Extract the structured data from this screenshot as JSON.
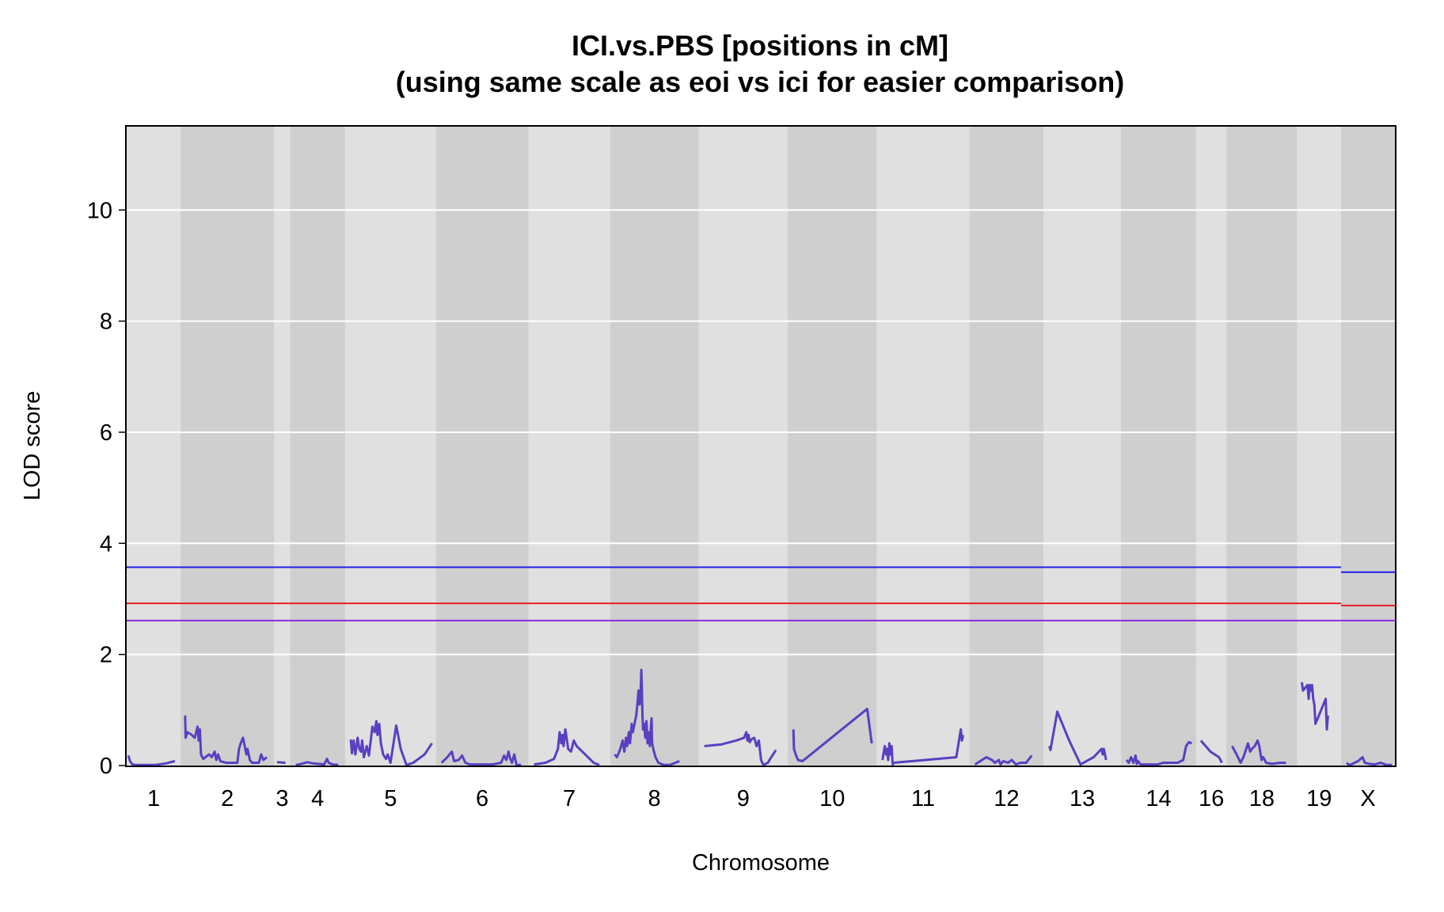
{
  "chart_data": {
    "type": "line",
    "title_lines": [
      "ICI.vs.PBS [positions in cM]",
      "(using same scale as eoi vs ici for easier comparison)"
    ],
    "xlabel": "Chromosome",
    "ylabel": "LOD score",
    "ylim": [
      0,
      11.5
    ],
    "yticks": [
      0,
      2,
      4,
      6,
      8,
      10
    ],
    "yticks_text": [
      "0",
      "2",
      "4",
      "6",
      "8",
      "10"
    ],
    "grid": true,
    "series_color": "#5a3fc0",
    "chromosomes": [
      {
        "label": "1",
        "span": [
          0,
          95
        ],
        "points": [
          [
            3,
            0.18
          ],
          [
            6,
            0.08
          ],
          [
            9,
            0.03
          ],
          [
            14,
            0.01
          ],
          [
            30,
            0.01
          ],
          [
            50,
            0.01
          ],
          [
            70,
            0.04
          ],
          [
            85,
            0.08
          ]
        ]
      },
      {
        "label": "2",
        "span": [
          95,
          260
        ],
        "points": [
          [
            8,
            0.9
          ],
          [
            9,
            0.5
          ],
          [
            12,
            0.6
          ],
          [
            20,
            0.55
          ],
          [
            25,
            0.5
          ],
          [
            30,
            0.7
          ],
          [
            32,
            0.45
          ],
          [
            34,
            0.65
          ],
          [
            36,
            0.2
          ],
          [
            40,
            0.12
          ],
          [
            44,
            0.15
          ],
          [
            50,
            0.2
          ],
          [
            55,
            0.15
          ],
          [
            60,
            0.25
          ],
          [
            63,
            0.1
          ],
          [
            66,
            0.2
          ],
          [
            70,
            0.08
          ],
          [
            80,
            0.05
          ],
          [
            100,
            0.05
          ],
          [
            103,
            0.3
          ],
          [
            106,
            0.4
          ],
          [
            110,
            0.5
          ],
          [
            113,
            0.35
          ],
          [
            116,
            0.2
          ],
          [
            118,
            0.3
          ],
          [
            122,
            0.1
          ],
          [
            126,
            0.05
          ],
          [
            138,
            0.05
          ],
          [
            142,
            0.2
          ],
          [
            146,
            0.1
          ],
          [
            152,
            0.15
          ]
        ]
      },
      {
        "label": "3",
        "span": [
          260,
          288
        ],
        "points": [
          [
            5,
            0.06
          ],
          [
            20,
            0.05
          ]
        ]
      },
      {
        "label": "4",
        "span": [
          288,
          385
        ],
        "points": [
          [
            10,
            0.01
          ],
          [
            20,
            0.03
          ],
          [
            30,
            0.06
          ],
          [
            40,
            0.04
          ],
          [
            50,
            0.03
          ],
          [
            60,
            0.02
          ],
          [
            65,
            0.12
          ],
          [
            68,
            0.05
          ],
          [
            75,
            0.02
          ],
          [
            85,
            0.01
          ]
        ]
      },
      {
        "label": "5",
        "span": [
          385,
          545
        ],
        "points": [
          [
            10,
            0.47
          ],
          [
            12,
            0.22
          ],
          [
            15,
            0.45
          ],
          [
            18,
            0.2
          ],
          [
            22,
            0.5
          ],
          [
            25,
            0.3
          ],
          [
            28,
            0.25
          ],
          [
            30,
            0.45
          ],
          [
            33,
            0.15
          ],
          [
            38,
            0.35
          ],
          [
            42,
            0.18
          ],
          [
            48,
            0.7
          ],
          [
            52,
            0.6
          ],
          [
            55,
            0.8
          ],
          [
            57,
            0.55
          ],
          [
            60,
            0.75
          ],
          [
            63,
            0.4
          ],
          [
            67,
            0.2
          ],
          [
            72,
            0.12
          ],
          [
            75,
            0.2
          ],
          [
            80,
            0.05
          ],
          [
            90,
            0.72
          ],
          [
            98,
            0.3
          ],
          [
            108,
            0.01
          ],
          [
            120,
            0.05
          ],
          [
            140,
            0.2
          ],
          [
            153,
            0.4
          ]
        ]
      },
      {
        "label": "6",
        "span": [
          545,
          708
        ],
        "points": [
          [
            10,
            0.05
          ],
          [
            20,
            0.15
          ],
          [
            28,
            0.25
          ],
          [
            32,
            0.08
          ],
          [
            40,
            0.1
          ],
          [
            46,
            0.18
          ],
          [
            52,
            0.05
          ],
          [
            60,
            0.02
          ],
          [
            80,
            0.02
          ],
          [
            100,
            0.02
          ],
          [
            115,
            0.05
          ],
          [
            120,
            0.18
          ],
          [
            124,
            0.1
          ],
          [
            128,
            0.25
          ],
          [
            130,
            0.15
          ],
          [
            134,
            0.05
          ],
          [
            138,
            0.2
          ],
          [
            142,
            0.01
          ],
          [
            150,
            0.01
          ]
        ]
      },
      {
        "label": "7",
        "span": [
          708,
          852
        ],
        "points": [
          [
            10,
            0.02
          ],
          [
            30,
            0.05
          ],
          [
            45,
            0.12
          ],
          [
            52,
            0.3
          ],
          [
            55,
            0.6
          ],
          [
            58,
            0.4
          ],
          [
            60,
            0.55
          ],
          [
            62,
            0.35
          ],
          [
            65,
            0.65
          ],
          [
            68,
            0.45
          ],
          [
            70,
            0.3
          ],
          [
            75,
            0.25
          ],
          [
            80,
            0.45
          ],
          [
            85,
            0.35
          ],
          [
            95,
            0.25
          ],
          [
            105,
            0.15
          ],
          [
            115,
            0.05
          ],
          [
            125,
            0.01
          ]
        ]
      },
      {
        "label": "8",
        "span": [
          852,
          1008
        ],
        "points": [
          [
            8,
            0.2
          ],
          [
            12,
            0.15
          ],
          [
            18,
            0.3
          ],
          [
            22,
            0.45
          ],
          [
            25,
            0.25
          ],
          [
            28,
            0.5
          ],
          [
            30,
            0.35
          ],
          [
            33,
            0.6
          ],
          [
            35,
            0.4
          ],
          [
            38,
            0.75
          ],
          [
            40,
            0.6
          ],
          [
            44,
            0.8
          ],
          [
            46,
            0.9
          ],
          [
            48,
            1.1
          ],
          [
            50,
            1.35
          ],
          [
            52,
            1.1
          ],
          [
            54,
            1.4
          ],
          [
            55,
            1.72
          ],
          [
            56,
            1.35
          ],
          [
            57,
            0.9
          ],
          [
            58,
            0.65
          ],
          [
            60,
            0.75
          ],
          [
            62,
            0.5
          ],
          [
            64,
            0.8
          ],
          [
            66,
            0.4
          ],
          [
            68,
            0.6
          ],
          [
            70,
            0.35
          ],
          [
            72,
            0.7
          ],
          [
            73,
            0.85
          ],
          [
            74,
            0.4
          ],
          [
            76,
            0.3
          ],
          [
            80,
            0.15
          ],
          [
            85,
            0.05
          ],
          [
            95,
            0.01
          ],
          [
            105,
            0.01
          ],
          [
            115,
            0.05
          ],
          [
            122,
            0.08
          ]
        ]
      },
      {
        "label": "9",
        "span": [
          1008,
          1165
        ],
        "points": [
          [
            10,
            0.35
          ],
          [
            40,
            0.38
          ],
          [
            66,
            0.45
          ],
          [
            80,
            0.5
          ],
          [
            84,
            0.6
          ],
          [
            86,
            0.45
          ],
          [
            88,
            0.55
          ],
          [
            90,
            0.42
          ],
          [
            94,
            0.48
          ],
          [
            98,
            0.5
          ],
          [
            102,
            0.35
          ],
          [
            106,
            0.45
          ],
          [
            110,
            0.1
          ],
          [
            114,
            0.01
          ],
          [
            122,
            0.05
          ],
          [
            126,
            0.12
          ],
          [
            130,
            0.18
          ],
          [
            136,
            0.28
          ]
        ]
      },
      {
        "label": "10",
        "span": [
          1165,
          1322
        ],
        "points": [
          [
            10,
            0.65
          ],
          [
            11,
            0.3
          ],
          [
            14,
            0.2
          ],
          [
            18,
            0.1
          ],
          [
            26,
            0.08
          ],
          [
            140,
            1.02
          ],
          [
            148,
            0.4
          ]
        ]
      },
      {
        "label": "11",
        "span": [
          1322,
          1485
        ],
        "points": [
          [
            10,
            0.1
          ],
          [
            14,
            0.35
          ],
          [
            16,
            0.2
          ],
          [
            18,
            0.3
          ],
          [
            20,
            0.1
          ],
          [
            22,
            0.4
          ],
          [
            24,
            0.2
          ],
          [
            26,
            0.35
          ],
          [
            28,
            0.02
          ],
          [
            30,
            0.05
          ],
          [
            140,
            0.15
          ],
          [
            148,
            0.65
          ],
          [
            150,
            0.45
          ],
          [
            152,
            0.55
          ]
        ]
      },
      {
        "label": "12",
        "span": [
          1485,
          1616
        ],
        "points": [
          [
            10,
            0.02
          ],
          [
            30,
            0.15
          ],
          [
            40,
            0.1
          ],
          [
            45,
            0.05
          ],
          [
            52,
            0.1
          ],
          [
            55,
            0.02
          ],
          [
            60,
            0.08
          ],
          [
            68,
            0.05
          ],
          [
            75,
            0.1
          ],
          [
            82,
            0.02
          ],
          [
            90,
            0.05
          ],
          [
            100,
            0.05
          ],
          [
            110,
            0.18
          ]
        ]
      },
      {
        "label": "13",
        "span": [
          1616,
          1752
        ],
        "points": [
          [
            10,
            0.35
          ],
          [
            12,
            0.28
          ],
          [
            24,
            0.97
          ],
          [
            45,
            0.45
          ],
          [
            65,
            0.02
          ],
          [
            88,
            0.15
          ],
          [
            102,
            0.3
          ],
          [
            104,
            0.2
          ],
          [
            106,
            0.3
          ],
          [
            110,
            0.1
          ]
        ]
      },
      {
        "label": "14",
        "span": [
          1752,
          1885
        ],
        "points": [
          [
            10,
            0.1
          ],
          [
            14,
            0.05
          ],
          [
            18,
            0.15
          ],
          [
            22,
            0.05
          ],
          [
            26,
            0.18
          ],
          [
            28,
            0.03
          ],
          [
            30,
            0.08
          ],
          [
            35,
            0.02
          ],
          [
            50,
            0.02
          ],
          [
            65,
            0.02
          ],
          [
            75,
            0.05
          ],
          [
            85,
            0.05
          ],
          [
            100,
            0.05
          ],
          [
            110,
            0.1
          ],
          [
            115,
            0.35
          ],
          [
            120,
            0.42
          ],
          [
            125,
            0.4
          ]
        ]
      },
      {
        "label": "16",
        "span": [
          1885,
          1938
        ],
        "points": [
          [
            8,
            0.45
          ],
          [
            25,
            0.25
          ],
          [
            40,
            0.15
          ],
          [
            45,
            0.05
          ]
        ]
      },
      {
        "label": "18",
        "span": [
          1938,
          2063
        ],
        "points": [
          [
            10,
            0.35
          ],
          [
            18,
            0.2
          ],
          [
            25,
            0.05
          ],
          [
            30,
            0.15
          ],
          [
            35,
            0.3
          ],
          [
            38,
            0.4
          ],
          [
            42,
            0.25
          ],
          [
            45,
            0.3
          ],
          [
            50,
            0.35
          ],
          [
            55,
            0.45
          ],
          [
            58,
            0.35
          ],
          [
            62,
            0.1
          ],
          [
            65,
            0.15
          ],
          [
            70,
            0.05
          ],
          [
            80,
            0.03
          ],
          [
            95,
            0.05
          ],
          [
            105,
            0.05
          ]
        ]
      },
      {
        "label": "19",
        "span": [
          2063,
          2140
        ],
        "points": [
          [
            8,
            1.5
          ],
          [
            10,
            1.35
          ],
          [
            14,
            1.4
          ],
          [
            18,
            1.45
          ],
          [
            20,
            1.2
          ],
          [
            22,
            1.45
          ],
          [
            24,
            1.35
          ],
          [
            26,
            1.45
          ],
          [
            28,
            1.2
          ],
          [
            30,
            1.1
          ],
          [
            32,
            0.75
          ],
          [
            38,
            0.9
          ],
          [
            44,
            1.05
          ],
          [
            50,
            1.2
          ],
          [
            52,
            0.65
          ],
          [
            54,
            0.9
          ]
        ]
      },
      {
        "label": "X",
        "span": [
          2140,
          2235
        ],
        "points": [
          [
            10,
            0.05
          ],
          [
            14,
            0.01
          ],
          [
            20,
            0.03
          ],
          [
            30,
            0.08
          ],
          [
            38,
            0.15
          ],
          [
            42,
            0.05
          ],
          [
            50,
            0.03
          ],
          [
            60,
            0.02
          ],
          [
            70,
            0.05
          ],
          [
            80,
            0.01
          ],
          [
            90,
            0.01
          ]
        ]
      }
    ],
    "thresholds": [
      {
        "color": "#1f1fe8",
        "segments": [
          {
            "from": 0,
            "to": 2140,
            "value": 3.57
          },
          {
            "from": 2140,
            "to": 2235,
            "value": 3.48
          }
        ]
      },
      {
        "color": "#e82020",
        "segments": [
          {
            "from": 0,
            "to": 2140,
            "value": 2.92
          },
          {
            "from": 2140,
            "to": 2235,
            "value": 2.88
          }
        ]
      },
      {
        "color": "#8a2be2",
        "segments": [
          {
            "from": 0,
            "to": 2235,
            "value": 2.61
          }
        ]
      }
    ],
    "band_colors": [
      "#e0e0e0",
      "#cfcfcf"
    ],
    "x_total": 2235
  }
}
